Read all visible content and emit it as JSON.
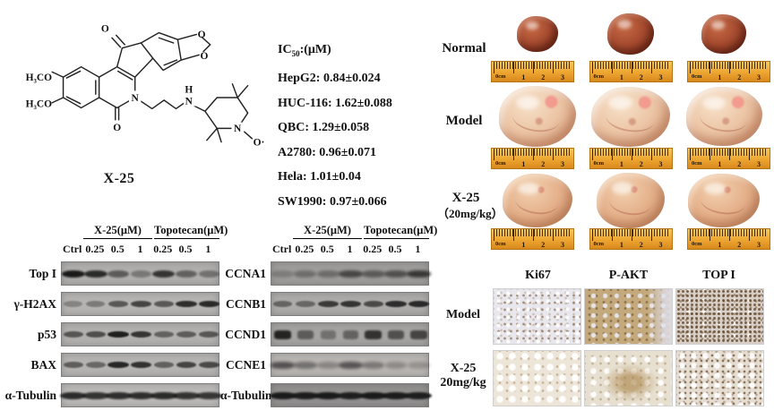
{
  "figure_bg": "#ffffff",
  "compound": {
    "name": "X-25",
    "atoms": {
      "methoxy_top": "H₃CO",
      "methoxy_bottom": "H₃CO",
      "ketone_top": "O",
      "lactam_o": "O",
      "dioxole_o1": "O",
      "dioxole_o2": "O",
      "ring_n": "N",
      "amine_h": "H",
      "amine_n": "N",
      "nitroxide_n": "N",
      "nitroxide_o": "O·"
    }
  },
  "ic50": {
    "title_main": "IC",
    "title_sub": "50",
    "title_rest": ":(μM)",
    "lines": [
      "HepG2: 0.84±0.024",
      "HUC-116: 1.62±0.088",
      "QBC: 1.29±0.058",
      "A2780: 0.96±0.071",
      "Hela: 1.01±0.04",
      "SW1990: 0.97±0.066"
    ]
  },
  "blots": {
    "lanes": [
      "Ctrl",
      "0.25",
      "0.5",
      "1",
      "0.25",
      "0.5",
      "1"
    ],
    "group_headers": [
      "X-25(μM)",
      "Topotecan(μM)"
    ],
    "band_color": "#1a1a1a",
    "left_panel": {
      "rows": [
        {
          "label": "Top I",
          "bg": "#b1afad",
          "bands": [
            1.0,
            0.88,
            0.5,
            0.28,
            0.8,
            0.45,
            0.33
          ]
        },
        {
          "label": "γ-H2AX",
          "bg": "#b6b4b2",
          "bands": [
            0.22,
            0.28,
            0.55,
            0.68,
            0.55,
            0.85,
            0.88
          ]
        },
        {
          "label": "p53",
          "bg": "#b3b1af",
          "bands": [
            0.55,
            0.6,
            0.95,
            0.8,
            0.45,
            0.5,
            0.55
          ]
        },
        {
          "label": "BAX",
          "bg": "#b6b4b2",
          "bands": [
            0.5,
            0.42,
            0.9,
            0.82,
            0.48,
            0.68,
            0.65
          ]
        },
        {
          "label": "α-Tubulin",
          "bg": "#bcbab8",
          "bands": [
            0.88,
            0.82,
            0.85,
            0.85,
            0.88,
            0.82,
            0.8
          ]
        }
      ]
    },
    "right_panel": {
      "rows": [
        {
          "label": "CCNA1",
          "bg": "#a09e9c",
          "bands": [
            0.15,
            0.28,
            0.3,
            0.62,
            0.45,
            0.55,
            0.75
          ]
        },
        {
          "label": "CCNB1",
          "bg": "#adabaa",
          "bands": [
            0.42,
            0.4,
            0.75,
            0.8,
            0.62,
            0.85,
            0.88
          ]
        },
        {
          "label": "CCND1",
          "bg": "#a6a4a2",
          "bands": [
            0.92,
            0.45,
            0.28,
            0.4,
            0.8,
            0.55,
            0.65
          ]
        },
        {
          "label": "CCNE1",
          "bg": "#bab7b3",
          "bands": [
            0.6,
            0.38,
            0.22,
            0.58,
            0.32,
            0.18,
            0.12
          ]
        },
        {
          "label": "α-Tubulin",
          "bg": "#939190",
          "bands": [
            1.0,
            0.98,
            1.0,
            0.95,
            1.0,
            0.98,
            0.95
          ]
        }
      ]
    }
  },
  "tumor_panel": {
    "rows": [
      {
        "label": "Normal",
        "label2": "",
        "type": "normal"
      },
      {
        "label": "Model",
        "label2": "",
        "type": "model"
      },
      {
        "label": "X-25",
        "label2": "（20mg/kg）",
        "type": "x25"
      }
    ],
    "ruler_marks": [
      "0cm",
      "1",
      "2",
      "3"
    ],
    "ruler_color": "#eda531",
    "organ_colors": {
      "normal": "#a74c30",
      "model": "#ecc6a6",
      "x25": "#e3ae88"
    }
  },
  "ihc_panel": {
    "col_headers": [
      "Ki67",
      "P-AKT",
      "TOP I"
    ],
    "row_labels": [
      {
        "label": "Model",
        "label2": ""
      },
      {
        "label": "X-25",
        "label2": "20mg/kg"
      }
    ],
    "cells": [
      [
        "ki67-model",
        "pakt-model",
        "topi-model"
      ],
      [
        "ki67-x25",
        "pakt-x25",
        "topi-x25"
      ]
    ],
    "stain_color": "#8b6235"
  }
}
